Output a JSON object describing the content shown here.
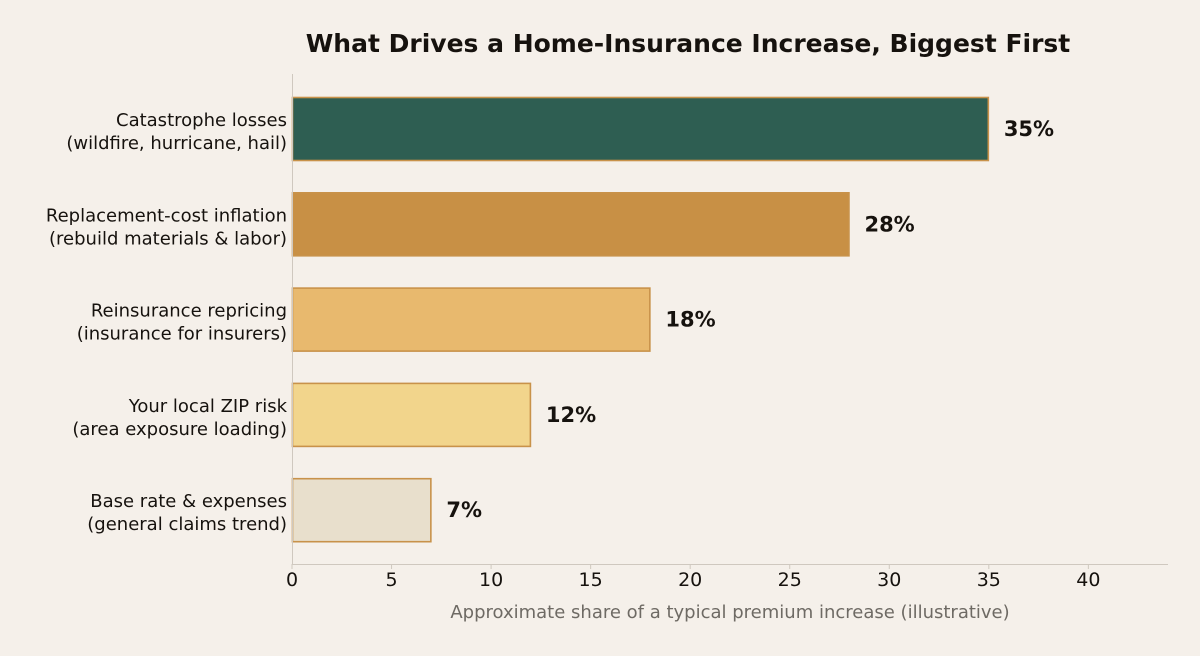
{
  "chart_data": {
    "type": "bar",
    "orientation": "horizontal",
    "title": "What Drives a Home-Insurance Increase, Biggest First",
    "xlabel": "Approximate share of a typical premium increase (illustrative)",
    "ylabel": "",
    "xlim": [
      0,
      44
    ],
    "x_ticks": [
      0,
      5,
      10,
      15,
      20,
      25,
      30,
      35,
      40
    ],
    "grid": false,
    "value_suffix": "%",
    "categories": [
      [
        "Catastrophe losses",
        "(wildfire, hurricane, hail)"
      ],
      [
        "Replacement-cost inflation",
        "(rebuild materials & labor)"
      ],
      [
        "Reinsurance repricing",
        "(insurance for insurers)"
      ],
      [
        "Your local ZIP risk",
        "(area exposure loading)"
      ],
      [
        "Base rate & expenses",
        "(general claims trend)"
      ]
    ],
    "values": [
      35,
      28,
      18,
      12,
      7
    ],
    "value_labels": [
      "35%",
      "28%",
      "18%",
      "12%",
      "7%"
    ],
    "colors": [
      "#2e5e52",
      "#c89045",
      "#e8b96e",
      "#f2d58c",
      "#e8dfcc"
    ],
    "bar_edge_color": "#c8924a",
    "axis_color": "#cfc8bf",
    "background": "#f5f0ea"
  }
}
